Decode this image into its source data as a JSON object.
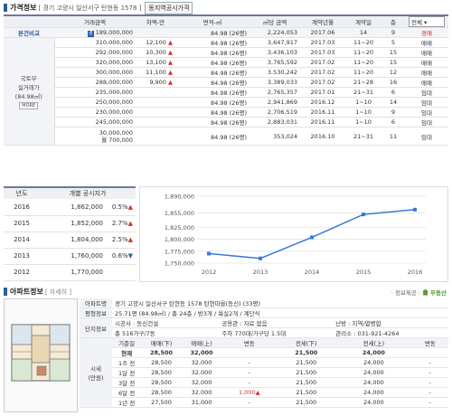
{
  "price_section": {
    "title": "가격정보",
    "address": "[ 경기 고양시 일산서구 탄현동 1578 ]",
    "button": "동지역공시가격"
  },
  "price_table": {
    "headers": [
      "거래금액",
      "차액-만",
      "면적-㎡",
      "㎡당 금액",
      "계약년월",
      "계약일",
      "층"
    ],
    "type_select": "전체",
    "compare_label": "본건비교",
    "side_label_1": "국토부",
    "side_label_2": "실거래가",
    "side_label_3": "(84.98㎡)",
    "side_badge": "MORE",
    "compare_row": {
      "price": "189,000,000",
      "diff": "",
      "area": "84.98 (26평)",
      "per_m2": "2,224,053",
      "ym": "2017.06",
      "day": "14",
      "floor": "9",
      "type": "경매"
    },
    "rows": [
      {
        "price": "310,000,000",
        "diff": "12,100",
        "area": "84.98 (26평)",
        "per_m2": "3,647,917",
        "ym": "2017.03",
        "day": "11~20",
        "floor": "5",
        "type": "매매"
      },
      {
        "price": "292,000,000",
        "diff": "10,300",
        "area": "84.98 (26평)",
        "per_m2": "3,436,103",
        "ym": "2017.03",
        "day": "11~20",
        "floor": "15",
        "type": "매매"
      },
      {
        "price": "320,000,000",
        "diff": "13,100",
        "area": "84.98 (26평)",
        "per_m2": "3,765,592",
        "ym": "2017.02",
        "day": "11~20",
        "floor": "15",
        "type": "매매"
      },
      {
        "price": "300,000,000",
        "diff": "11,100",
        "area": "84.98 (26평)",
        "per_m2": "3,530,242",
        "ym": "2017.02",
        "day": "11~20",
        "floor": "12",
        "type": "매매"
      },
      {
        "price": "288,000,000",
        "diff": "9,900",
        "area": "84.98 (26평)",
        "per_m2": "3,389,033",
        "ym": "2017.02",
        "day": "21~28",
        "floor": "16",
        "type": "매매"
      },
      {
        "price": "235,000,000",
        "diff": "",
        "area": "84.98 (26평)",
        "per_m2": "2,765,357",
        "ym": "2017.01",
        "day": "21~31",
        "floor": "6",
        "type": "임대"
      },
      {
        "price": "250,000,000",
        "diff": "",
        "area": "84.98 (26평)",
        "per_m2": "2,941,869",
        "ym": "2016.12",
        "day": "1~10",
        "floor": "14",
        "type": "임대"
      },
      {
        "price": "230,000,000",
        "diff": "",
        "area": "84.98 (26평)",
        "per_m2": "2,706,519",
        "ym": "2016.11",
        "day": "1~10",
        "floor": "9",
        "type": "임대"
      },
      {
        "price": "245,000,000",
        "diff": "",
        "area": "84.98 (26평)",
        "per_m2": "2,883,031",
        "ym": "2016.11",
        "day": "1~10",
        "floor": "6",
        "type": "임대"
      },
      {
        "price_line1": "30,000,000",
        "price_line2": "월 700,000",
        "diff": "",
        "area": "84.98 (26평)",
        "per_m2": "353,024",
        "ym": "2016.10",
        "day": "21~31",
        "floor": "11",
        "type": "임대"
      }
    ]
  },
  "year_table": {
    "headers": [
      "년도",
      "개별 공시지가"
    ],
    "rows": [
      {
        "year": "2016",
        "value": "1,862,000",
        "rate": "0.5%",
        "dir": "up"
      },
      {
        "year": "2015",
        "value": "1,852,000",
        "rate": "2.7%",
        "dir": "up"
      },
      {
        "year": "2014",
        "value": "1,804,000",
        "rate": "2.5%",
        "dir": "up"
      },
      {
        "year": "2013",
        "value": "1,760,000",
        "rate": "0.6%",
        "dir": "down"
      },
      {
        "year": "2012",
        "value": "1,770,000",
        "rate": "",
        "dir": ""
      }
    ]
  },
  "chart_data": {
    "type": "line",
    "x": [
      "2012",
      "2013",
      "2014",
      "2015",
      "2016"
    ],
    "values": [
      1770000,
      1760000,
      1804000,
      1852000,
      1862000
    ],
    "yticks": [
      "1,750,000",
      "1,775,000",
      "1,800,000",
      "1,825,000",
      "1,855,000",
      "1,890,000"
    ],
    "ylim": [
      1750000,
      1890000
    ],
    "color": "#3a7bd5",
    "grid": true
  },
  "apt_section": {
    "title": "아파트정보",
    "detail_link": "[ 자세히 ]",
    "source": "· 정보제공 :",
    "source_brand": "부동산"
  },
  "apt_info": {
    "apt_name_label": "아파트명",
    "apt_name": "경기 고양시 일산서구 탄현동 1578 탄현마을(동신) (33평)",
    "area_label": "평형정보",
    "area_value": "25.71평 (84.98㎡) / 총 24층 / 방3개 / 욕실2개 / 계단식",
    "complex_label": "단지정보",
    "builder_label": "시공사 : 동신건설",
    "parking_label": "공용관 : 자료 없음",
    "heat_label": "난방 : 지역/열병합",
    "households": "총 516가구/7동",
    "parking2": "주차 770대/가구당 1.5대",
    "office": "관리소 : 031-921-4264",
    "history_label_1": "시세",
    "history_label_2": "(만원)",
    "history_headers": [
      "기준일",
      "매매(下)",
      "매매(上)",
      "변동",
      "전세(下)",
      "전세(上)",
      "변동"
    ],
    "history_rows": [
      {
        "date": "현재",
        "s_lo": "28,500",
        "s_hi": "32,000",
        "s_chg": "",
        "j_lo": "21,500",
        "j_hi": "24,000",
        "j_chg": "",
        "bold": true
      },
      {
        "date": "1주 전",
        "s_lo": "28,500",
        "s_hi": "32,000",
        "s_chg": "-",
        "j_lo": "21,500",
        "j_hi": "24,000",
        "j_chg": "-"
      },
      {
        "date": "1달 전",
        "s_lo": "28,500",
        "s_hi": "32,000",
        "s_chg": "-",
        "j_lo": "21,500",
        "j_hi": "24,000",
        "j_chg": "-"
      },
      {
        "date": "3달 전",
        "s_lo": "28,500",
        "s_hi": "32,000",
        "s_chg": "-",
        "j_lo": "21,500",
        "j_hi": "24,000",
        "j_chg": "-"
      },
      {
        "date": "6달 전",
        "s_lo": "28,500",
        "s_hi": "32,000",
        "s_chg": "1,000▲",
        "j_lo": "21,500",
        "j_hi": "24,000",
        "j_chg": "-"
      },
      {
        "date": "1년 전",
        "s_lo": "27,500",
        "s_hi": "31,000",
        "s_chg": "-",
        "j_lo": "21,500",
        "j_hi": "24,000",
        "j_chg": "-"
      }
    ]
  }
}
